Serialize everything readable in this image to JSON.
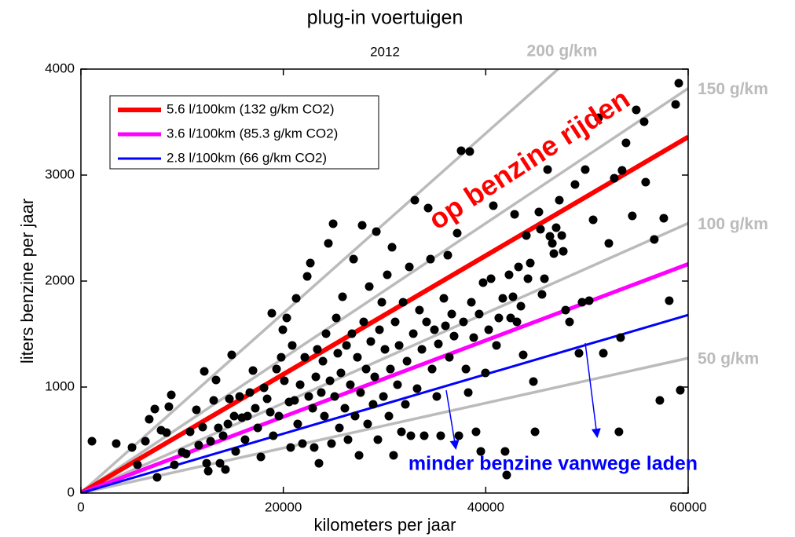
{
  "chart_data": {
    "type": "scatter",
    "title": "plug-in voertuigen",
    "subtitle": "2012",
    "x_label": "kilometers per jaar",
    "y_label": "liters benzine per jaar",
    "xlim": [
      0,
      60000
    ],
    "ylim": [
      0,
      4000
    ],
    "xticks": [
      0,
      20000,
      40000,
      60000
    ],
    "yticks": [
      0,
      1000,
      2000,
      3000,
      4000
    ],
    "legend": "top-left",
    "annotations": [
      "op benzine rijden",
      "minder benzine vanwege laden"
    ],
    "reference_lines": [
      {
        "name": "200 g/km",
        "color": "#bbbbbb",
        "x": [
          0,
          60000
        ],
        "values": [
          0,
          5090
        ]
      },
      {
        "name": "150 g/km",
        "color": "#bbbbbb",
        "x": [
          0,
          60000
        ],
        "values": [
          0,
          3818
        ]
      },
      {
        "name": "100 g/km",
        "color": "#bbbbbb",
        "x": [
          0,
          60000
        ],
        "values": [
          0,
          2545
        ]
      },
      {
        "name": "50 g/km",
        "color": "#bbbbbb",
        "x": [
          0,
          60000
        ],
        "values": [
          0,
          1273
        ]
      }
    ],
    "series": [
      {
        "name": "5.6 l/100km (132 g/km CO2)",
        "color": "#ff0000",
        "x": [
          0,
          60000
        ],
        "values": [
          0,
          3360
        ]
      },
      {
        "name": "3.6 l/100km (85.3 g/km CO2)",
        "color": "#ff00ff",
        "x": [
          0,
          60000
        ],
        "values": [
          0,
          2160
        ]
      },
      {
        "name": "2.8 l/100km (66 g/km CO2)",
        "color": "#0000ff",
        "x": [
          0,
          60000
        ],
        "values": [
          0,
          1680
        ]
      }
    ],
    "scatter": {
      "color": "#000000",
      "x": [
        1090,
        3490,
        5050,
        5590,
        6370,
        6750,
        7300,
        7530,
        7920,
        8460,
        8690,
        8930,
        9240,
        10010,
        10400,
        10790,
        11410,
        11640,
        12030,
        12190,
        12420,
        12580,
        12810,
        13120,
        13350,
        13580,
        13740,
        14050,
        14280,
        14520,
        14670,
        14900,
        15140,
        15290,
        15680,
        15910,
        16220,
        16460,
        16690,
        17000,
        17230,
        17470,
        17780,
        18090,
        18400,
        18710,
        18860,
        19010,
        19330,
        19560,
        19790,
        19950,
        20100,
        20340,
        20570,
        20720,
        20880,
        21110,
        21270,
        21420,
        21660,
        21890,
        22120,
        22360,
        22510,
        22670,
        22900,
        23050,
        23210,
        23360,
        23520,
        23750,
        23910,
        24060,
        24220,
        24450,
        24610,
        24760,
        24920,
        25070,
        25230,
        25380,
        25540,
        25690,
        25850,
        26080,
        26240,
        26390,
        26620,
        26780,
        26940,
        27090,
        27320,
        27480,
        27630,
        27790,
        27940,
        28180,
        28330,
        28490,
        28640,
        28870,
        29030,
        29190,
        29340,
        29500,
        29730,
        29890,
        30040,
        30270,
        30430,
        30580,
        30740,
        30890,
        31050,
        31280,
        31440,
        31670,
        31830,
        32060,
        32220,
        32450,
        32600,
        32840,
        32990,
        33220,
        33450,
        33690,
        33920,
        34150,
        34310,
        34540,
        34700,
        34930,
        35160,
        35320,
        35550,
        35860,
        36020,
        36250,
        36400,
        36640,
        36870,
        37180,
        37340,
        37570,
        37800,
        38040,
        38270,
        38420,
        38580,
        38810,
        39040,
        39350,
        39510,
        39740,
        39970,
        40290,
        40520,
        40750,
        41060,
        41290,
        41680,
        41910,
        42070,
        42300,
        42460,
        42690,
        42850,
        43080,
        43240,
        43470,
        43700,
        44010,
        44170,
        44400,
        44710,
        44870,
        45250,
        45410,
        45560,
        45800,
        46110,
        46340,
        46580,
        46730,
        46960,
        47270,
        47510,
        47660,
        47890,
        48280,
        48820,
        49210,
        49520,
        49830,
        50220,
        50610,
        51150,
        51620,
        52160,
        52700,
        53160,
        53320,
        53470,
        53860,
        54480,
        54870,
        55650,
        55800,
        56650,
        57200,
        57590,
        58130,
        58760,
        59070,
        59220
      ],
      "values": [
        489,
        467,
        430,
        267,
        489,
        696,
        793,
        148,
        593,
        570,
        815,
        926,
        267,
        385,
        370,
        578,
        785,
        452,
        622,
        1148,
        281,
        207,
        489,
        874,
        1067,
        615,
        281,
        541,
        222,
        652,
        889,
        1304,
        726,
        393,
        911,
        711,
        504,
        726,
        948,
        1156,
        800,
        615,
        341,
        993,
        889,
        763,
        1696,
        541,
        1170,
        726,
        1281,
        1541,
        1059,
        1652,
        859,
        430,
        1393,
        874,
        1837,
        652,
        1022,
        467,
        1281,
        2044,
        911,
        2170,
        800,
        430,
        1096,
        1356,
        281,
        948,
        1244,
        726,
        1504,
        2356,
        1059,
        467,
        2541,
        911,
        1652,
        1319,
        615,
        1133,
        1852,
        800,
        1393,
        504,
        1022,
        1504,
        2207,
        726,
        1281,
        356,
        948,
        2526,
        1615,
        1170,
        652,
        1948,
        1430,
        837,
        1096,
        2467,
        504,
        1541,
        1800,
        911,
        1356,
        2059,
        726,
        1170,
        2319,
        356,
        1615,
        1022,
        1393,
        578,
        1800,
        837,
        1244,
        2133,
        541,
        1504,
        2763,
        985,
        1726,
        1356,
        541,
        1615,
        2689,
        2207,
        1170,
        1541,
        911,
        1407,
        541,
        1837,
        1578,
        2244,
        1281,
        1689,
        1481,
        2452,
        541,
        3230,
        1615,
        1170,
        948,
        3222,
        1800,
        1467,
        578,
        1689,
        393,
        1985,
        1133,
        1541,
        2022,
        2711,
        1393,
        1652,
        1837,
        393,
        170,
        2059,
        1652,
        1852,
        2630,
        1615,
        2133,
        1763,
        1304,
        2430,
        2022,
        2170,
        1052,
        578,
        2652,
        2489,
        1874,
        2022,
        3052,
        2422,
        2356,
        2259,
        2504,
        2763,
        2430,
        2281,
        1726,
        1615,
        2911,
        1319,
        1800,
        3052,
        1815,
        2578,
        3541,
        1319,
        2356,
        2970,
        578,
        1467,
        3044,
        3304,
        2615,
        3615,
        3504,
        2933,
        2393,
        874,
        2593,
        1815,
        3667,
        3867,
        970
      ]
    }
  }
}
